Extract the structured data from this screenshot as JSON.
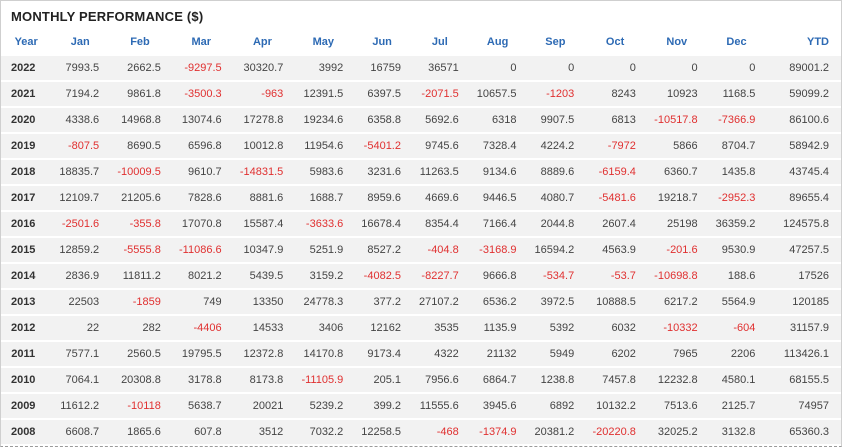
{
  "title": "MONTHLY PERFORMANCE ($)",
  "colors": {
    "header_text": "#2d6ab4",
    "negative": "#e03030",
    "positive": "#444444",
    "row_bg": "#f2f2f2"
  },
  "table": {
    "columns": [
      "Year",
      "Jan",
      "Feb",
      "Mar",
      "Apr",
      "May",
      "Jun",
      "Jul",
      "Aug",
      "Sep",
      "Oct",
      "Nov",
      "Dec",
      "YTD"
    ],
    "rows": [
      {
        "year": "2022",
        "values": [
          "7993.5",
          "2662.5",
          "-9297.5",
          "30320.7",
          "3992",
          "16759",
          "36571",
          "0",
          "0",
          "0",
          "0",
          "0",
          "89001.2"
        ]
      },
      {
        "year": "2021",
        "values": [
          "7194.2",
          "9861.8",
          "-3500.3",
          "-963",
          "12391.5",
          "6397.5",
          "-2071.5",
          "10657.5",
          "-1203",
          "8243",
          "10923",
          "1168.5",
          "59099.2"
        ]
      },
      {
        "year": "2020",
        "values": [
          "4338.6",
          "14968.8",
          "13074.6",
          "17278.8",
          "19234.6",
          "6358.8",
          "5692.6",
          "6318",
          "9907.5",
          "6813",
          "-10517.8",
          "-7366.9",
          "86100.6"
        ]
      },
      {
        "year": "2019",
        "values": [
          "-807.5",
          "8690.5",
          "6596.8",
          "10012.8",
          "11954.6",
          "-5401.2",
          "9745.6",
          "7328.4",
          "4224.2",
          "-7972",
          "5866",
          "8704.7",
          "58942.9"
        ]
      },
      {
        "year": "2018",
        "values": [
          "18835.7",
          "-10009.5",
          "9610.7",
          "-14831.5",
          "5983.6",
          "3231.6",
          "11263.5",
          "9134.6",
          "8889.6",
          "-6159.4",
          "6360.7",
          "1435.8",
          "43745.4"
        ]
      },
      {
        "year": "2017",
        "values": [
          "12109.7",
          "21205.6",
          "7828.6",
          "8881.6",
          "1688.7",
          "8959.6",
          "4669.6",
          "9446.5",
          "4080.7",
          "-5481.6",
          "19218.7",
          "-2952.3",
          "89655.4"
        ]
      },
      {
        "year": "2016",
        "values": [
          "-2501.6",
          "-355.8",
          "17070.8",
          "15587.4",
          "-3633.6",
          "16678.4",
          "8354.4",
          "7166.4",
          "2044.8",
          "2607.4",
          "25198",
          "36359.2",
          "124575.8"
        ]
      },
      {
        "year": "2015",
        "values": [
          "12859.2",
          "-5555.8",
          "-11086.6",
          "10347.9",
          "5251.9",
          "8527.2",
          "-404.8",
          "-3168.9",
          "16594.2",
          "4563.9",
          "-201.6",
          "9530.9",
          "47257.5"
        ]
      },
      {
        "year": "2014",
        "values": [
          "2836.9",
          "11811.2",
          "8021.2",
          "5439.5",
          "3159.2",
          "-4082.5",
          "-8227.7",
          "9666.8",
          "-534.7",
          "-53.7",
          "-10698.8",
          "188.6",
          "17526"
        ]
      },
      {
        "year": "2013",
        "values": [
          "22503",
          "-1859",
          "749",
          "13350",
          "24778.3",
          "377.2",
          "27107.2",
          "6536.2",
          "3972.5",
          "10888.5",
          "6217.2",
          "5564.9",
          "120185"
        ]
      },
      {
        "year": "2012",
        "values": [
          "22",
          "282",
          "-4406",
          "14533",
          "3406",
          "12162",
          "3535",
          "1135.9",
          "5392",
          "6032",
          "-10332",
          "-604",
          "31157.9"
        ]
      },
      {
        "year": "2011",
        "values": [
          "7577.1",
          "2560.5",
          "19795.5",
          "12372.8",
          "14170.8",
          "9173.4",
          "4322",
          "21132",
          "5949",
          "6202",
          "7965",
          "2206",
          "113426.1"
        ]
      },
      {
        "year": "2010",
        "values": [
          "7064.1",
          "20308.8",
          "3178.8",
          "8173.8",
          "-11105.9",
          "205.1",
          "7956.6",
          "6864.7",
          "1238.8",
          "7457.8",
          "12232.8",
          "4580.1",
          "68155.5"
        ]
      },
      {
        "year": "2009",
        "values": [
          "11612.2",
          "-10118",
          "5638.7",
          "20021",
          "5239.2",
          "399.2",
          "11555.6",
          "3945.6",
          "6892",
          "10132.2",
          "7513.6",
          "2125.7",
          "74957"
        ]
      },
      {
        "year": "2008",
        "values": [
          "6608.7",
          "1865.6",
          "607.8",
          "3512",
          "7032.2",
          "12258.5",
          "-468",
          "-1374.9",
          "20381.2",
          "-20220.8",
          "32025.2",
          "3132.8",
          "65360.3"
        ]
      }
    ]
  }
}
